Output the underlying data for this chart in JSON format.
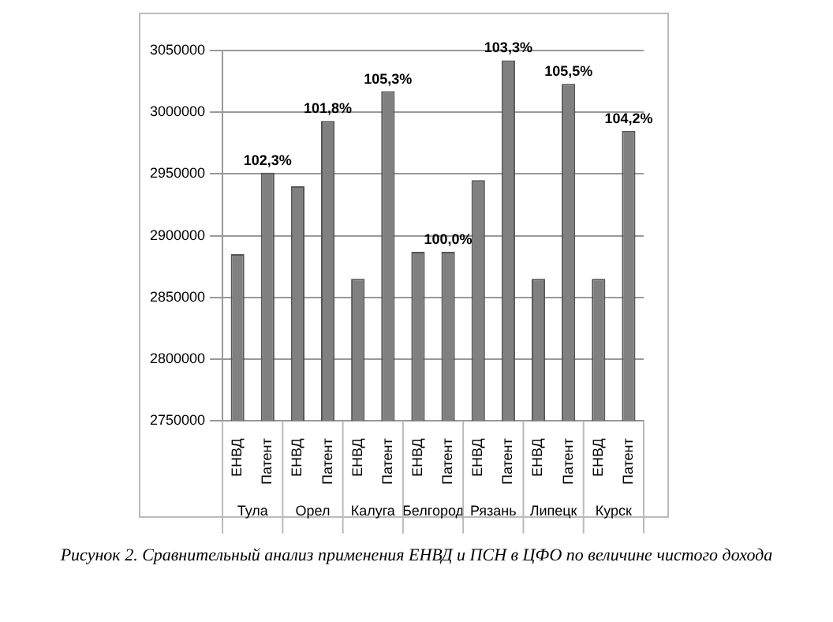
{
  "chart_data": {
    "type": "bar",
    "categories": [
      "ЕНВД",
      "Патент",
      "ЕНВД",
      "Патент",
      "ЕНВД",
      "Патент",
      "ЕНВД",
      "Патент",
      "ЕНВД",
      "Патент",
      "ЕНВД",
      "Патент",
      "ЕНВД",
      "Патент"
    ],
    "values": [
      2885000,
      2951000,
      2940000,
      2993000,
      2865000,
      3017000,
      2887000,
      2887000,
      2945000,
      3042000,
      2865000,
      3023000,
      2865000,
      2985000
    ],
    "color": "#808080",
    "ylim": [
      2750000,
      3050000
    ],
    "yticks": [
      2750000,
      2800000,
      2850000,
      2900000,
      2950000,
      3000000,
      3050000
    ],
    "grid": "y",
    "legend": false,
    "annotations": [
      "Тула",
      "Орел",
      "Калуга",
      "Белгород",
      "Рязань",
      "Липецк",
      "Курск",
      "102,3%",
      "101,8%",
      "105,3%",
      "100,0%",
      "103,3%",
      "105,5%",
      "104,2%",
      "Рисунок 2. Сравнительный анализ применения ЕНВД и ПСН в ЦФО по величине чистого дохода"
    ]
  }
}
